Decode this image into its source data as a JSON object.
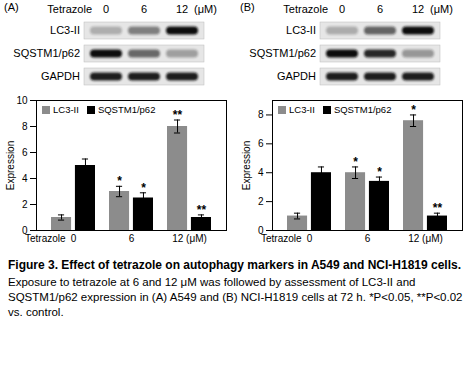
{
  "chart_data": [
    {
      "type": "bar",
      "categories": [
        "0",
        "6",
        "12 (μM)"
      ],
      "xlabel": "Tetrazole",
      "ylabel": "Expression",
      "ylim": [
        0,
        10
      ],
      "yticks": [
        0,
        2,
        4,
        6,
        8,
        10
      ],
      "legend": "top",
      "series": [
        {
          "name": "LC3-II",
          "color": "#8c8c8c",
          "values": [
            1,
            3,
            8
          ],
          "errors": [
            0.2,
            0.4,
            0.5
          ],
          "significance": [
            null,
            "*",
            "**"
          ]
        },
        {
          "name": "SQSTM1/p62",
          "color": "#000000",
          "values": [
            5,
            2.5,
            1
          ],
          "errors": [
            0.5,
            0.4,
            0.2
          ],
          "significance": [
            null,
            "*",
            "**"
          ]
        }
      ]
    },
    {
      "type": "bar",
      "categories": [
        "0",
        "6",
        "12 (μM)"
      ],
      "xlabel": "Tetrazole",
      "ylabel": "Expression",
      "ylim": [
        0,
        9
      ],
      "yticks": [
        0,
        2,
        4,
        6,
        8
      ],
      "legend": "top",
      "series": [
        {
          "name": "LC3-II",
          "color": "#8c8c8c",
          "values": [
            1,
            4,
            7.6
          ],
          "errors": [
            0.2,
            0.4,
            0.4
          ],
          "significance": [
            null,
            "*",
            "*"
          ]
        },
        {
          "name": "SQSTM1/p62",
          "color": "#000000",
          "values": [
            4,
            3.4,
            1
          ],
          "errors": [
            0.4,
            0.3,
            0.2
          ],
          "significance": [
            null,
            "*",
            "**"
          ]
        }
      ]
    }
  ],
  "panels": [
    {
      "label": "(A)",
      "blot": {
        "header": "Tetrazole",
        "lanes": [
          "0",
          "6",
          "12"
        ],
        "unit": "(μM)",
        "rows": [
          "LC3-II",
          "SQSTM1/p62",
          "GAPDH"
        ]
      }
    },
    {
      "label": "(B)",
      "blot": {
        "header": "Tetrazole",
        "lanes": [
          "0",
          "6",
          "12"
        ],
        "unit": "(μM)",
        "rows": [
          "LC3-II",
          "SQSTM1/p62",
          "GAPDH"
        ]
      }
    }
  ],
  "caption": {
    "title": "Figure 3. Effect of tetrazole on autophagy markers in A549 and NCI-H1819 cells.",
    "text": "Exposure to tetrazole at 6 and 12 μM was followed by assessment of LC3-II and SQSTM1/p62 expression in (A) A549 and (B) NCI-H1819 cells at 72 h. *P<0.05, **P<0.02 vs. control."
  }
}
